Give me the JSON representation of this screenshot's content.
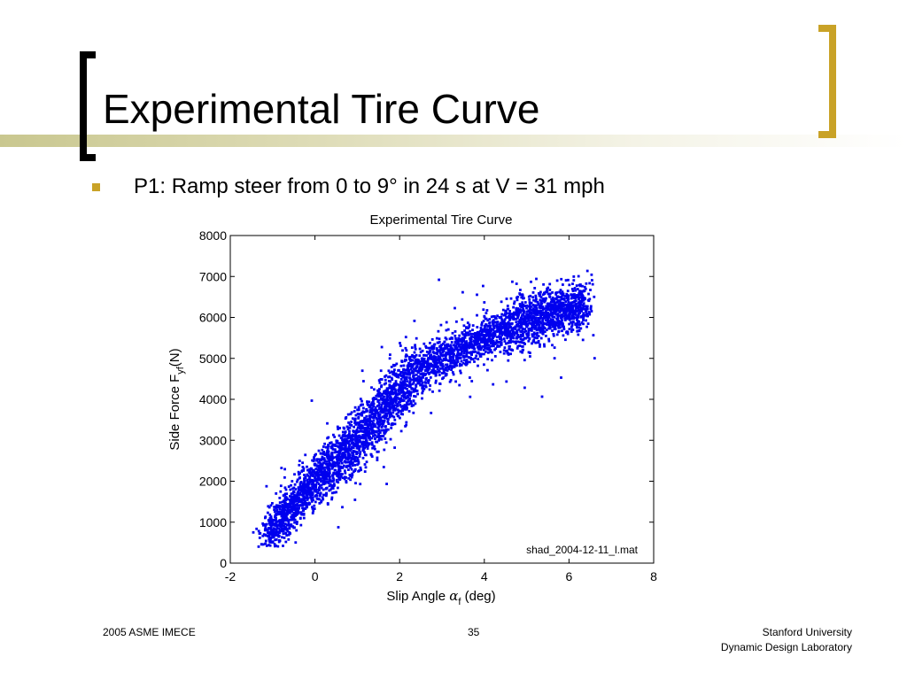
{
  "slide": {
    "title": "Experimental Tire Curve",
    "bullet": "P1: Ramp steer from 0 to 9° in 24 s at V = 31 mph"
  },
  "footer": {
    "left": "2005 ASME IMECE",
    "page_number": "35",
    "right_line1": "Stanford University",
    "right_line2": "Dynamic Design Laboratory"
  },
  "colors": {
    "bullet": "#c9a227",
    "right_bracket": "#c9a227",
    "points": "#0000ee"
  },
  "chart_data": {
    "type": "scatter",
    "title": "Experimental Tire Curve",
    "xlabel": "Slip Angle α_f (deg)",
    "xlabel_main": "Slip Angle ",
    "xlabel_symbol": "α",
    "xlabel_sub": "f",
    "xlabel_unit": " (deg)",
    "ylabel": "Side Force F_yf (N)",
    "ylabel_main": "Side Force F",
    "ylabel_sub": "yf",
    "ylabel_unit": "(N)",
    "xlim": [
      -2,
      8
    ],
    "ylim": [
      0,
      8000
    ],
    "xticks": [
      -2,
      0,
      2,
      4,
      6,
      8
    ],
    "yticks": [
      0,
      1000,
      2000,
      3000,
      4000,
      5000,
      6000,
      7000,
      8000
    ],
    "annotation": "shad_2004-12-11_l.mat",
    "grid": false,
    "series": [
      {
        "trend": [
          [
            -1.1,
            700
          ],
          [
            -0.6,
            1300
          ],
          [
            0,
            2000
          ],
          [
            0.6,
            2600
          ],
          [
            1.2,
            3200
          ],
          [
            1.8,
            4000
          ],
          [
            2.2,
            4500
          ],
          [
            3,
            5000
          ],
          [
            4,
            5500
          ],
          [
            5,
            5900
          ],
          [
            5.5,
            6100
          ],
          [
            6.2,
            6250
          ]
        ],
        "x": [
          -1.2,
          -1.0,
          -0.8,
          -0.6,
          -0.4,
          -0.2,
          0.0,
          0.2,
          0.4,
          0.6,
          0.8,
          1.0,
          1.2,
          1.4,
          1.6,
          1.8,
          2.0,
          2.2,
          2.5,
          2.8,
          3.1,
          3.4,
          3.7,
          4.0,
          4.3,
          4.6,
          4.9,
          5.2,
          5.5,
          5.8,
          6.1,
          6.4
        ],
        "y": [
          800,
          1000,
          1100,
          1300,
          1500,
          1800,
          2000,
          2200,
          2300,
          2600,
          2900,
          3000,
          3300,
          3600,
          3800,
          4100,
          4300,
          4500,
          4700,
          4900,
          5000,
          5100,
          5200,
          5400,
          5500,
          5700,
          5800,
          6000,
          6100,
          6200,
          6300,
          6200
        ]
      }
    ]
  }
}
